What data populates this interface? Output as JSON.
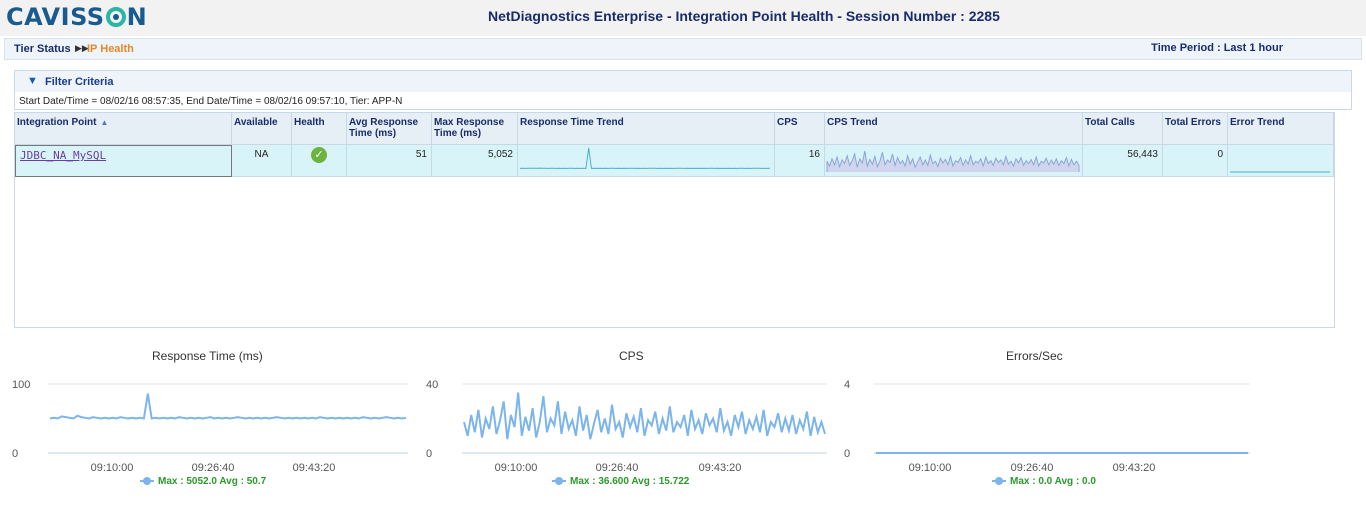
{
  "header": {
    "logo": "CAVISSON",
    "title": "NetDiagnostics Enterprise - Integration Point Health - Session Number : 2285"
  },
  "breadcrumb": {
    "tier_status": "Tier Status",
    "ip_health": "IP Health",
    "time_period": "Time Period : Last 1 hour"
  },
  "filter": {
    "label": "Filter Criteria",
    "text": "Start Date/Time = 08/02/16 08:57:35, End Date/Time = 08/02/16 09:57:10, Tier: APP-N"
  },
  "table": {
    "headers": {
      "integration_point": "Integration Point",
      "available": "Available",
      "health": "Health",
      "avg_rt": "Avg Response Time (ms)",
      "max_rt": "Max Response Time (ms)",
      "rt_trend": "Response Time Trend",
      "cps": "CPS",
      "cps_trend": "CPS Trend",
      "total_calls": "Total Calls",
      "total_errors": "Total Errors",
      "error_trend": "Error Trend"
    },
    "row": {
      "integration_point": "JDBC_NA_MySQL",
      "available": "NA",
      "avg_rt": "51",
      "max_rt": "5,052",
      "cps": "16",
      "total_calls": "56,443",
      "total_errors": "0"
    }
  },
  "chart_data": [
    {
      "type": "line",
      "title": "Response Time (ms)",
      "ylim": [
        0,
        100
      ],
      "yticks": [
        "100",
        "0"
      ],
      "xticks": [
        "09:10:00",
        "09:26:40",
        "09:43:20"
      ],
      "legend": "Max : 5052.0 Avg : 50.7",
      "color": "#7cb5ec",
      "values": [
        50,
        51,
        50,
        53,
        52,
        51,
        50,
        54,
        52,
        51,
        50,
        52,
        51,
        50,
        51,
        50,
        51,
        50,
        52,
        51,
        50,
        51,
        50,
        51,
        50,
        86,
        50,
        51,
        50,
        51,
        50,
        51,
        50,
        52,
        51,
        50,
        51,
        50,
        51,
        50,
        51,
        52,
        50,
        51,
        50,
        51,
        50,
        51,
        52,
        51,
        50,
        51,
        50,
        51,
        50,
        51,
        50,
        51,
        52,
        51,
        50,
        51,
        50,
        51,
        50,
        51,
        50,
        51,
        50,
        52,
        51,
        50,
        51,
        50,
        51,
        50,
        51,
        50,
        51,
        50,
        52,
        51,
        50,
        51,
        50,
        51,
        52,
        51,
        50,
        51,
        50,
        51
      ]
    },
    {
      "type": "line",
      "title": "CPS",
      "ylim": [
        0,
        40
      ],
      "yticks": [
        "40",
        "0"
      ],
      "xticks": [
        "09:10:00",
        "09:26:40",
        "09:43:20"
      ],
      "legend": "Max : 36.600 Avg : 15.722",
      "color": "#7cb5ec",
      "values": [
        18,
        10,
        22,
        12,
        25,
        9,
        20,
        14,
        27,
        11,
        19,
        30,
        8,
        22,
        15,
        35,
        10,
        21,
        13,
        26,
        9,
        18,
        33,
        12,
        20,
        16,
        30,
        11,
        24,
        14,
        19,
        10,
        27,
        13,
        22,
        8,
        17,
        25,
        12,
        20,
        11,
        28,
        14,
        18,
        9,
        23,
        15,
        21,
        12,
        26,
        10,
        19,
        16,
        24,
        11,
        20,
        13,
        27,
        12,
        18,
        15,
        22,
        10,
        25,
        14,
        19,
        11,
        23,
        16,
        20,
        12,
        26,
        13,
        18,
        10,
        22,
        15,
        24,
        11,
        19,
        14,
        21,
        12,
        25,
        10,
        18,
        15,
        23,
        12,
        20,
        13,
        22,
        11,
        19,
        14,
        24,
        10,
        21,
        12,
        18,
        11
      ]
    },
    {
      "type": "line",
      "title": "Errors/Sec",
      "ylim": [
        0,
        4
      ],
      "yticks": [
        "4",
        "0"
      ],
      "xticks": [
        "09:10:00",
        "09:26:40",
        "09:43:20"
      ],
      "legend": "Max : 0.0 Avg : 0.0",
      "color": "#7cb5ec",
      "values": [
        0,
        0,
        0,
        0,
        0,
        0,
        0,
        0,
        0,
        0,
        0,
        0,
        0,
        0,
        0,
        0,
        0,
        0,
        0,
        0,
        0,
        0,
        0,
        0,
        0,
        0,
        0,
        0,
        0,
        0
      ]
    }
  ]
}
